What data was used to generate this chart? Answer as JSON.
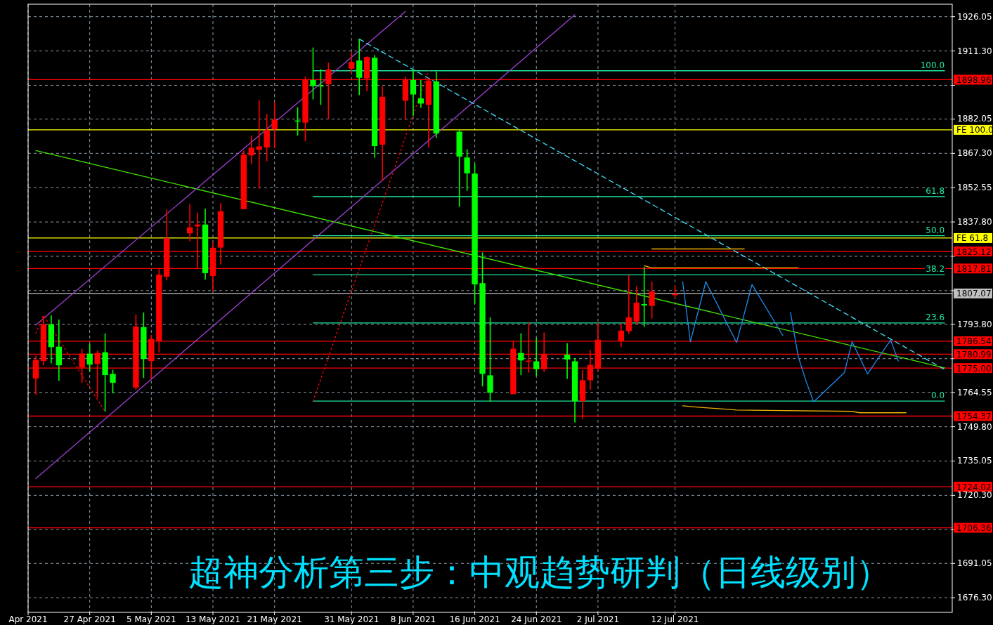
{
  "chart_data": {
    "type": "candlestick",
    "title": "超神分析第三步：中观趋势研判（日线级别）",
    "x": [
      "2021-04-20",
      "2021-04-21",
      "2021-04-22",
      "2021-04-23",
      "2021-04-26",
      "2021-04-27",
      "2021-04-28",
      "2021-04-29",
      "2021-04-30",
      "2021-05-03",
      "2021-05-04",
      "2021-05-05",
      "2021-05-06",
      "2021-05-07",
      "2021-05-10",
      "2021-05-11",
      "2021-05-12",
      "2021-05-13",
      "2021-05-14",
      "2021-05-17",
      "2021-05-18",
      "2021-05-19",
      "2021-05-20",
      "2021-05-21",
      "2021-05-24",
      "2021-05-25",
      "2021-05-26",
      "2021-05-27",
      "2021-05-28",
      "2021-05-31",
      "2021-06-01",
      "2021-06-02",
      "2021-06-03",
      "2021-06-04",
      "2021-06-07",
      "2021-06-08",
      "2021-06-09",
      "2021-06-10",
      "2021-06-11",
      "2021-06-14",
      "2021-06-15",
      "2021-06-16",
      "2021-06-17",
      "2021-06-18",
      "2021-06-21",
      "2021-06-22",
      "2021-06-23",
      "2021-06-24",
      "2021-06-25",
      "2021-06-28",
      "2021-06-29",
      "2021-06-30",
      "2021-07-01",
      "2021-07-02",
      "2021-07-05",
      "2021-07-06",
      "2021-07-07",
      "2021-07-08",
      "2021-07-09",
      "2021-07-12"
    ],
    "ohlc": [
      [
        1770.5,
        1780.3,
        1763.5,
        1778.5
      ],
      [
        1778.0,
        1797.5,
        1776.1,
        1793.8
      ],
      [
        1793.8,
        1797.7,
        1777.0,
        1784.0
      ],
      [
        1784.2,
        1795.9,
        1769.5,
        1776.2
      ],
      [
        1775.2,
        1783.3,
        1768.6,
        1781.2
      ],
      [
        1781.2,
        1785.4,
        1773.5,
        1776.5
      ],
      [
        1776.8,
        1782.5,
        1762.3,
        1781.5
      ],
      [
        1781.8,
        1789.9,
        1756.3,
        1772.0
      ],
      [
        1772.5,
        1774.3,
        1764.1,
        1768.7
      ],
      [
        1766.6,
        1798.0,
        1765.7,
        1792.9
      ],
      [
        1792.6,
        1798.9,
        1770.8,
        1778.9
      ],
      [
        1778.0,
        1789.3,
        1770.5,
        1787.5
      ],
      [
        1786.6,
        1818.0,
        1781.7,
        1815.1
      ],
      [
        1814.3,
        1843.2,
        1812.7,
        1830.9
      ],
      [
        1832.9,
        1845.5,
        1829.5,
        1835.5
      ],
      [
        1835.9,
        1841.8,
        1817.7,
        1836.7
      ],
      [
        1836.7,
        1843.5,
        1813.0,
        1815.8
      ],
      [
        1814.6,
        1829.0,
        1808.0,
        1826.7
      ],
      [
        1826.8,
        1845.9,
        1819.5,
        1842.4
      ],
      [
        1843.3,
        1868.5,
        1843.3,
        1866.7
      ],
      [
        1866.4,
        1875.0,
        1862.8,
        1869.7
      ],
      [
        1868.8,
        1890.1,
        1852.1,
        1870.3
      ],
      [
        1869.8,
        1884.2,
        1863.8,
        1877.3
      ],
      [
        1877.6,
        1889.5,
        1869.5,
        1881.8
      ],
      [
        1881.4,
        1887.1,
        1874.9,
        1881.2
      ],
      [
        1880.5,
        1900.3,
        1872.5,
        1899.0
      ],
      [
        1898.8,
        1912.8,
        1890.5,
        1896.2
      ],
      [
        1896.5,
        1903.5,
        1888.1,
        1896.3
      ],
      [
        1897.0,
        1906.3,
        1881.9,
        1903.3
      ],
      [
        1903.7,
        1910.8,
        1901.5,
        1906.6
      ],
      [
        1907.2,
        1916.5,
        1892.3,
        1899.8
      ],
      [
        1899.5,
        1909.0,
        1894.0,
        1908.7
      ],
      [
        1908.4,
        1909.5,
        1865.4,
        1870.4
      ],
      [
        1871.0,
        1896.1,
        1855.5,
        1891.6
      ],
      [
        1889.9,
        1900.3,
        1881.5,
        1899.0
      ],
      [
        1898.8,
        1903.5,
        1883.3,
        1892.6
      ],
      [
        1890.9,
        1898.8,
        1886.9,
        1888.7
      ],
      [
        1888.1,
        1899.5,
        1869.8,
        1898.6
      ],
      [
        1898.2,
        1902.5,
        1873.9,
        1875.8
      ],
      [
        1876.6,
        1877.5,
        1844.3,
        1865.9
      ],
      [
        1865.5,
        1869.1,
        1851.2,
        1858.7
      ],
      [
        1858.6,
        1863.0,
        1802.5,
        1811.0
      ],
      [
        1811.5,
        1824.7,
        1767.1,
        1772.5
      ],
      [
        1771.9,
        1796.8,
        1760.5,
        1764.4
      ],
      [
        1763.8,
        1786.5,
        1763.8,
        1783.3
      ],
      [
        1781.5,
        1790.0,
        1772.0,
        1778.3
      ],
      [
        1778.0,
        1794.7,
        1773.0,
        1778.2
      ],
      [
        1777.9,
        1788.0,
        1771.7,
        1774.5
      ],
      [
        1774.5,
        1790.3,
        1773.3,
        1780.8
      ],
      [
        1780.7,
        1785.7,
        1770.4,
        1778.7
      ],
      [
        1777.9,
        1779.3,
        1751.6,
        1760.8
      ],
      [
        1760.8,
        1774.3,
        1753.1,
        1769.8
      ],
      [
        1769.8,
        1782.7,
        1765.6,
        1776.4
      ],
      [
        1774.8,
        1794.5,
        1773.7,
        1787.2
      ],
      [
        1786.5,
        1794.2,
        1784.0,
        1791.1
      ],
      [
        1790.9,
        1814.9,
        1789.7,
        1796.8
      ],
      [
        1795.0,
        1810.2,
        1793.5,
        1803.1
      ],
      [
        1802.5,
        1818.5,
        1792.7,
        1801.9
      ],
      [
        1801.7,
        1812.2,
        1796.3,
        1807.9
      ],
      [
        1806.3,
        1810.5,
        1805.3,
        1806.9
      ]
    ],
    "colors": [
      "#ff0000",
      "#ff0000",
      "#00ff00",
      "#00ff00",
      "#ff0000",
      "#00ff00",
      "#ff0000",
      "#00ff00",
      "#00ff00",
      "#ff0000",
      "#00ff00",
      "#ff0000",
      "#ff0000",
      "#ff0000",
      "#ff0000",
      "#ff0000",
      "#00ff00",
      "#ff0000",
      "#ff0000",
      "#ff0000",
      "#ff0000",
      "#ff0000",
      "#ff0000",
      "#ff0000",
      "#00ff00",
      "#ff0000",
      "#00ff00",
      "#00ff00",
      "#ff0000",
      "#ff0000",
      "#00ff00",
      "#ff0000",
      "#00ff00",
      "#ff0000",
      "#ff0000",
      "#00ff00",
      "#00ff00",
      "#ff0000",
      "#00ff00",
      "#00ff00",
      "#00ff00",
      "#00ff00",
      "#00ff00",
      "#00ff00",
      "#ff0000",
      "#00ff00",
      "#ff0000",
      "#00ff00",
      "#ff0000",
      "#00ff00",
      "#00ff00",
      "#ff0000",
      "#ff0000",
      "#ff0000",
      "#ff0000",
      "#ff0000",
      "#ff0000",
      "#00ff00",
      "#ff0000",
      "#ff0000"
    ],
    "series": [
      {
        "type": "line",
        "color": "#20e8a0",
        "x": [
          "2021-05-26",
          "2021-08-16"
        ],
        "values": [
          1902.8,
          1902.8
        ]
      },
      {
        "type": "line",
        "color": "#20e8a0",
        "x": [
          "2021-05-26",
          "2021-08-16"
        ],
        "values": [
          1848.7,
          1848.7
        ]
      },
      {
        "type": "line",
        "color": "#20e8a0",
        "x": [
          "2021-05-26",
          "2021-08-16"
        ],
        "values": [
          1831.9,
          1831.9
        ]
      },
      {
        "type": "line",
        "color": "#20e8a0",
        "x": [
          "2021-05-26",
          "2021-08-16"
        ],
        "values": [
          1815.1,
          1815.1
        ]
      },
      {
        "type": "line",
        "color": "#20e8a0",
        "x": [
          "2021-05-26",
          "2021-08-16"
        ],
        "values": [
          1794.4,
          1794.4
        ]
      },
      {
        "type": "line",
        "color": "#20e8a0",
        "x": [
          "2021-05-26",
          "2021-08-16"
        ],
        "values": [
          1760.8,
          1760.8
        ]
      },
      {
        "type": "line",
        "color": "#40e000",
        "x": [
          "2021-04-20",
          "2021-08-16"
        ],
        "values": [
          1868.5,
          1775.1
        ]
      },
      {
        "type": "line",
        "color": "#a040d0",
        "x": [
          "2021-04-20",
          "2021-06-07"
        ],
        "values": [
          1793.5,
          1928.3
        ]
      },
      {
        "type": "line",
        "color": "#a040d0",
        "x": [
          "2021-04-20",
          "2021-06-29"
        ],
        "values": [
          1727.5,
          1926.9
        ]
      },
      {
        "type": "line",
        "color": "#40e0ff",
        "line_style": "dashed",
        "x": [
          "2021-06-01",
          "2021-08-16"
        ],
        "values": [
          1916.4,
          1774.4
        ]
      },
      {
        "type": "line",
        "color": "#ff0000",
        "line_style": "dotted",
        "x": [
          "2021-04-20",
          "2021-04-21",
          "2021-04-29"
        ],
        "values": [
          1790.0,
          1797.7,
          1756.3
        ]
      },
      {
        "type": "line",
        "color": "#ff0000",
        "line_style": "dotted",
        "x": [
          "2021-05-26",
          "2021-06-10"
        ],
        "values": [
          1760.8,
          1902.8
        ]
      },
      {
        "type": "line",
        "color": "#f0b000",
        "x": [
          "2021-07-09",
          "2021-07-21"
        ],
        "values": [
          1826.2,
          1826.2
        ]
      },
      {
        "type": "line",
        "color": "#f0b000",
        "x": [
          "2021-07-08",
          "2021-07-09",
          "2021-07-28"
        ],
        "values": [
          1819.0,
          1818.1,
          1818.1
        ]
      },
      {
        "type": "line",
        "color": "#f0b000",
        "x": [
          "2021-07-13",
          "2021-07-15",
          "2021-07-20",
          "2021-08-04",
          "2021-08-05",
          "2021-08-11"
        ],
        "values": [
          1758.8,
          1758.2,
          1757.0,
          1756.4,
          1755.8,
          1755.8
        ]
      },
      {
        "type": "line",
        "color": "#1e8cf0",
        "x": [
          "2021-07-13",
          "2021-07-14",
          "2021-07-16",
          "2021-07-20",
          "2021-07-22",
          "2021-07-26"
        ],
        "values": [
          1812.1,
          1786.3,
          1812.1,
          1786.0,
          1810.9,
          1789.0
        ]
      },
      {
        "type": "line",
        "color": "#1e8cf0",
        "x": [
          "2021-07-27",
          "2021-07-28",
          "2021-07-29",
          "2021-07-30",
          "2021-08-03",
          "2021-08-04",
          "2021-08-06",
          "2021-08-09",
          "2021-08-10"
        ],
        "values": [
          1798.9,
          1780.0,
          1769.5,
          1760.5,
          1773.1,
          1786.3,
          1772.5,
          1787.0,
          1778.0
        ]
      }
    ],
    "annotations": [
      {
        "text": "100.0",
        "x": "2021-08-16",
        "y": 1902.8
      },
      {
        "text": "61.8",
        "x": "2021-08-16",
        "y": 1848.7
      },
      {
        "text": "50.0",
        "x": "2021-08-16",
        "y": 1831.9
      },
      {
        "text": "38.2",
        "x": "2021-08-16",
        "y": 1815.1
      },
      {
        "text": "23.6",
        "x": "2021-08-16",
        "y": 1794.4
      },
      {
        "text": "0.0",
        "x": "2021-08-16",
        "y": 1760.8
      }
    ],
    "ref_lines": [
      {
        "axis": "y",
        "value": 1898.96,
        "label": "1898.96",
        "color": "#ff0000"
      },
      {
        "axis": "y",
        "value": 1877.4,
        "label": "FE 100.0",
        "color": "#ffff00"
      },
      {
        "axis": "y",
        "value": 1830.9,
        "label": "FE 61.8",
        "color": "#ffff00"
      },
      {
        "axis": "y",
        "value": 1825.12,
        "label": "1825.12",
        "color": "#ff0000"
      },
      {
        "axis": "y",
        "value": 1817.81,
        "label": "1817.81",
        "color": "#ff0000"
      },
      {
        "axis": "y",
        "value": 1807.07,
        "label": "1807.07",
        "color": "#c0c0c0"
      },
      {
        "axis": "y",
        "value": 1786.54,
        "label": "1786.54",
        "color": "#ff0000"
      },
      {
        "axis": "y",
        "value": 1780.99,
        "label": "1780.99",
        "color": "#ff0000"
      },
      {
        "axis": "y",
        "value": 1775.0,
        "label": "1775.00",
        "color": "#ff0000"
      },
      {
        "axis": "y",
        "value": 1754.37,
        "label": "1754.37",
        "color": "#ff0000"
      },
      {
        "axis": "y",
        "value": 1724.02,
        "label": "1724.02",
        "color": "#ff0000"
      },
      {
        "axis": "y",
        "value": 1706.36,
        "label": "1706.36",
        "color": "#ff0000"
      }
    ],
    "xlim": [
      "2021-04-19",
      "2021-08-17"
    ],
    "xticks": [
      {
        "value": "2021-04-19",
        "label": "Apr 2021"
      },
      {
        "value": "2021-04-27",
        "label": "27 Apr 2021"
      },
      {
        "value": "2021-05-05",
        "label": "5 May 2021"
      },
      {
        "value": "2021-05-13",
        "label": "13 May 2021"
      },
      {
        "value": "2021-05-21",
        "label": "21 May 2021"
      },
      {
        "value": "2021-05-31",
        "label": "31 May 2021"
      },
      {
        "value": "2021-06-08",
        "label": "8 Jun 2021"
      },
      {
        "value": "2021-06-16",
        "label": "16 Jun 2021"
      },
      {
        "value": "2021-06-24",
        "label": "24 Jun 2021"
      },
      {
        "value": "2021-07-02",
        "label": "2 Jul 2021"
      },
      {
        "value": "2021-07-12",
        "label": "12 Jul 2021"
      }
    ],
    "ylim": [
      1670.0,
      1931.4
    ],
    "yticks": [
      {
        "value": 1926.05,
        "label": "1926.05"
      },
      {
        "value": 1911.3,
        "label": "1911.30"
      },
      {
        "value": 1896.55,
        "label": null
      },
      {
        "value": 1882.05,
        "label": "1882.05"
      },
      {
        "value": 1867.3,
        "label": "1867.30"
      },
      {
        "value": 1852.55,
        "label": "1852.55"
      },
      {
        "value": 1837.8,
        "label": "1837.80"
      },
      {
        "value": 1823.05,
        "label": null
      },
      {
        "value": 1808.3,
        "label": null
      },
      {
        "value": 1793.8,
        "label": "1793.80"
      },
      {
        "value": 1779.05,
        "label": null
      },
      {
        "value": 1764.55,
        "label": "1764.55"
      },
      {
        "value": 1749.8,
        "label": "1749.80"
      },
      {
        "value": 1735.05,
        "label": "1735.05"
      },
      {
        "value": 1720.3,
        "label": "1720.30"
      },
      {
        "value": 1705.55,
        "label": null
      },
      {
        "value": 1691.05,
        "label": "1691.05"
      },
      {
        "value": 1676.3,
        "label": "1676.30"
      }
    ],
    "grid": true
  }
}
